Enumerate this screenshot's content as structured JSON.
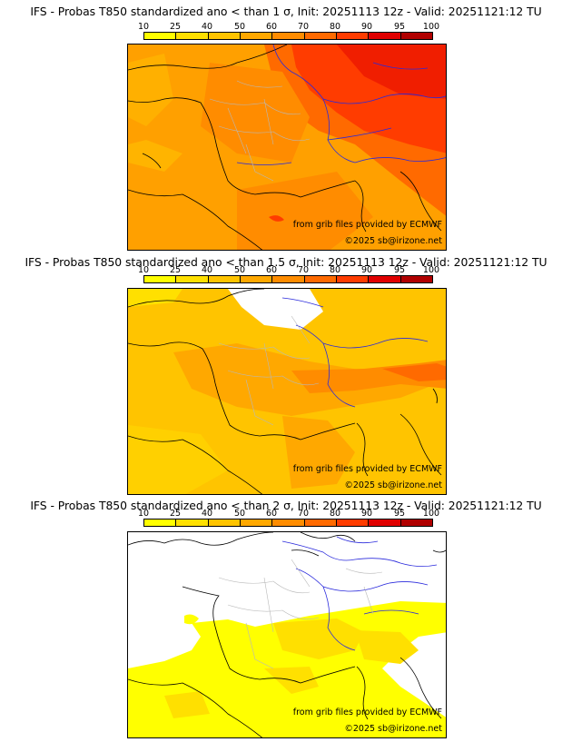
{
  "legend": {
    "ticks": [
      "10",
      "25",
      "40",
      "50",
      "60",
      "70",
      "80",
      "90",
      "95",
      "100"
    ],
    "colors": [
      "#ffff00",
      "#ffe000",
      "#ffc400",
      "#ffa800",
      "#ff8c00",
      "#ff6a00",
      "#ff3c00",
      "#e00000",
      "#b00000",
      "#6a0000"
    ]
  },
  "panels": [
    {
      "title": "IFS - Probas T850  standardized ano < than 1 σ, Init: 20251113 12z - Valid: 20251121:12 TU",
      "credit_source": "from grib files provided by ECMWF",
      "credit_copyright": "©2025 sb@irizone.net"
    },
    {
      "title": "IFS - Probas T850  standardized ano < than 1.5 σ, Init: 20251113 12z - Valid: 20251121:12 TU",
      "credit_source": "from grib files provided by ECMWF",
      "credit_copyright": "©2025 sb@irizone.net"
    },
    {
      "title": "IFS - Probas T850  standardized ano < than 2 σ, Init: 20251113 12z - Valid: 20251121:12 TU",
      "credit_source": "from grib files provided by ECMWF",
      "credit_copyright": "©2025 sb@irizone.net"
    }
  ],
  "colors": {
    "coast": "#000000",
    "borders": "#2a2adc",
    "regions": "#b8b8b8"
  }
}
